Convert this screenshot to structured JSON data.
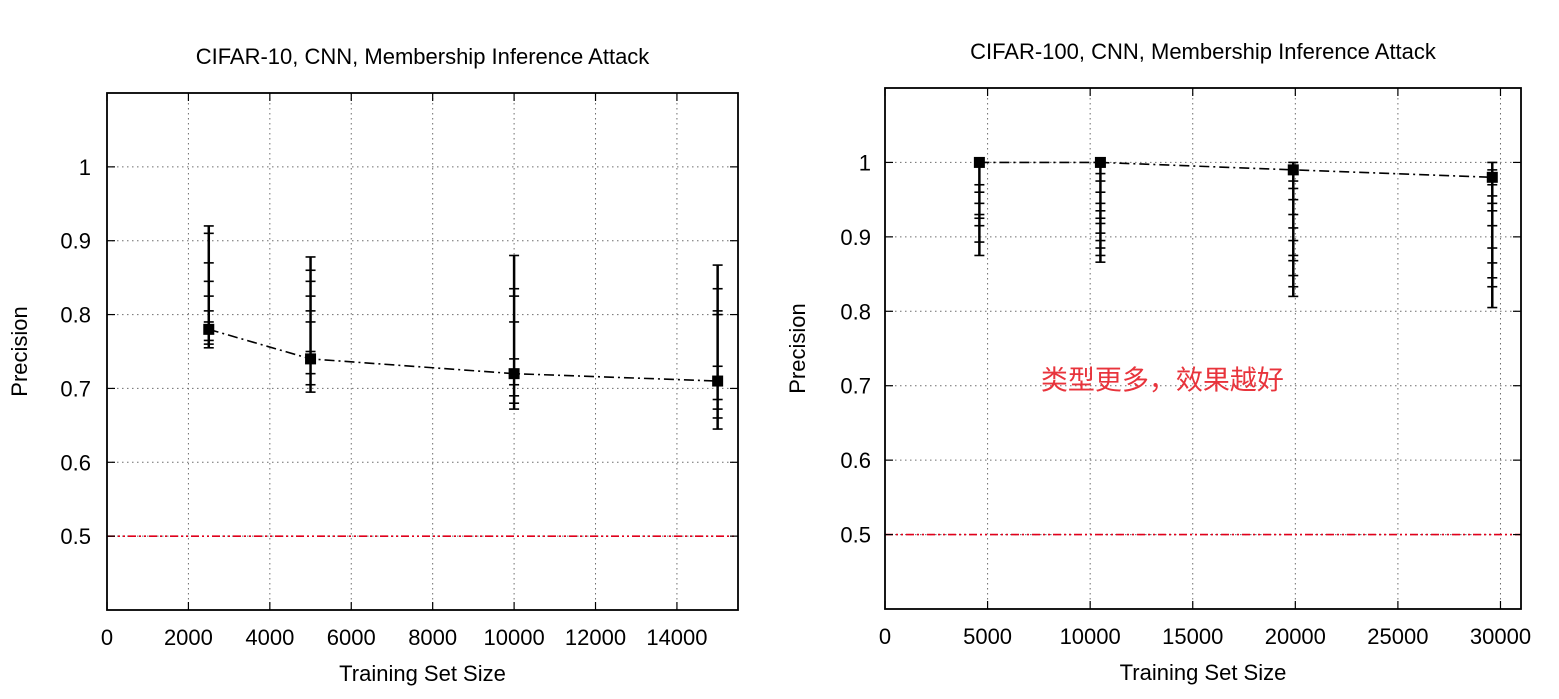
{
  "colors": {
    "series": "#000000",
    "baseline": "#e0001b",
    "annotation": "#e8343c"
  },
  "chart_data": [
    {
      "type": "line",
      "title": "CIFAR-10, CNN, Membership Inference Attack",
      "xlabel": "Training Set Size",
      "ylabel": "Precision",
      "xlim": [
        0,
        15500
      ],
      "ylim": [
        0.4,
        1.1
      ],
      "xticks": [
        0,
        2000,
        4000,
        6000,
        8000,
        10000,
        12000,
        14000
      ],
      "xtick_labels": [
        "0",
        "2000",
        "4000",
        "6000",
        "8000",
        "10000",
        "12000",
        "14000"
      ],
      "yticks": [
        0.5,
        0.6,
        0.7,
        0.8,
        0.9,
        1
      ],
      "ytick_labels": [
        "0.5",
        "0.6",
        "0.7",
        "0.8",
        "0.9",
        "1"
      ],
      "grid": true,
      "baseline": 0.5,
      "series": [
        {
          "x": [
            2500,
            5000,
            10000,
            15000
          ],
          "y": [
            0.78,
            0.74,
            0.72,
            0.71
          ],
          "trials": [
            [
              0.755,
              0.76,
              0.765,
              0.775,
              0.79,
              0.805,
              0.825,
              0.845,
              0.87,
              0.91,
              0.92
            ],
            [
              0.695,
              0.705,
              0.72,
              0.735,
              0.75,
              0.79,
              0.805,
              0.825,
              0.845,
              0.86,
              0.878
            ],
            [
              0.672,
              0.68,
              0.69,
              0.705,
              0.715,
              0.74,
              0.79,
              0.825,
              0.835,
              0.88
            ],
            [
              0.645,
              0.66,
              0.672,
              0.685,
              0.705,
              0.73,
              0.8,
              0.805,
              0.835,
              0.867
            ]
          ]
        }
      ]
    },
    {
      "type": "line",
      "title": "CIFAR-100, CNN, Membership Inference Attack",
      "xlabel": "Training Set Size",
      "ylabel": "Precision",
      "xlim": [
        0,
        31000
      ],
      "ylim": [
        0.4,
        1.1
      ],
      "xticks": [
        0,
        5000,
        10000,
        15000,
        20000,
        25000,
        30000
      ],
      "xtick_labels": [
        "0",
        "5000",
        "10000",
        "15000",
        "20000",
        "25000",
        "30000"
      ],
      "yticks": [
        0.5,
        0.6,
        0.7,
        0.8,
        0.9,
        1
      ],
      "ytick_labels": [
        "0.5",
        "0.6",
        "0.7",
        "0.8",
        "0.9",
        "1"
      ],
      "grid": true,
      "baseline": 0.5,
      "annotation": "类型更多，效果越好",
      "series": [
        {
          "x": [
            4600,
            10500,
            19900,
            29600
          ],
          "y": [
            1.0,
            1.0,
            0.99,
            0.98
          ],
          "trials": [
            [
              0.875,
              0.893,
              0.915,
              0.925,
              0.93,
              0.945,
              0.96,
              0.97,
              1.0
            ],
            [
              0.866,
              0.875,
              0.885,
              0.895,
              0.905,
              0.918,
              0.925,
              0.935,
              0.945,
              0.96,
              0.975,
              0.985,
              0.995,
              1.0
            ],
            [
              0.82,
              0.833,
              0.848,
              0.868,
              0.875,
              0.895,
              0.912,
              0.93,
              0.95,
              0.965,
              0.975,
              0.985,
              0.995,
              1.0
            ],
            [
              0.805,
              0.833,
              0.845,
              0.865,
              0.885,
              0.915,
              0.935,
              0.945,
              0.955,
              0.97,
              0.98,
              0.99,
              1.0
            ]
          ]
        }
      ]
    }
  ]
}
